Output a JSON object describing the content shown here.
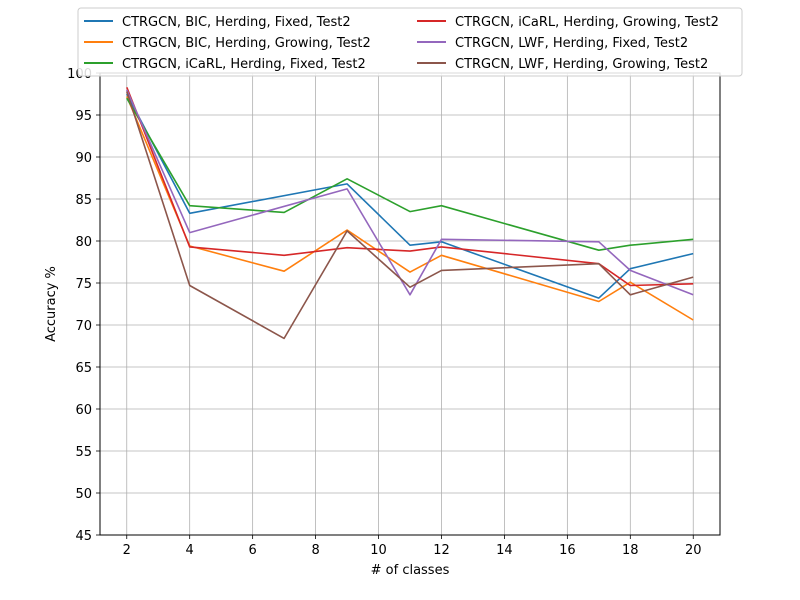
{
  "chart_data": {
    "type": "line",
    "title": "",
    "xlabel": "# of classes",
    "ylabel": "Accuracy %",
    "xlim": [
      1.15,
      20.85
    ],
    "ylim": [
      45,
      100
    ],
    "xticks": [
      2,
      4,
      6,
      8,
      10,
      12,
      14,
      16,
      18,
      20
    ],
    "yticks": [
      45,
      50,
      55,
      60,
      65,
      70,
      75,
      80,
      85,
      90,
      95,
      100
    ],
    "grid": true,
    "legend": {
      "placement": "top",
      "columns": 2
    },
    "series": [
      {
        "name": "CTRGCN, BIC, Herding, Fixed, Test2",
        "color": "#1f77b4",
        "x": [
          2,
          4,
          9,
          11,
          12,
          17,
          18,
          20
        ],
        "y": [
          97.5,
          83.3,
          86.8,
          79.5,
          79.9,
          73.2,
          76.7,
          78.5
        ]
      },
      {
        "name": "CTRGCN, BIC, Herding, Growing, Test2",
        "color": "#ff7f0e",
        "x": [
          2,
          4,
          7,
          9,
          11,
          12,
          17,
          18,
          20
        ],
        "y": [
          97.2,
          79.4,
          76.4,
          81.3,
          76.3,
          78.3,
          72.8,
          75.1,
          70.6
        ]
      },
      {
        "name": "CTRGCN, iCaRL, Herding, Fixed, Test2",
        "color": "#2ca02c",
        "x": [
          2,
          4,
          7,
          9,
          11,
          12,
          17,
          18,
          20
        ],
        "y": [
          97.0,
          84.2,
          83.4,
          87.4,
          83.5,
          84.2,
          78.9,
          79.5,
          80.2
        ]
      },
      {
        "name": "CTRGCN, iCaRL, Herding, Growing, Test2",
        "color": "#d62728",
        "x": [
          2,
          4,
          7,
          9,
          11,
          12,
          17,
          18,
          20
        ],
        "y": [
          98.3,
          79.3,
          78.3,
          79.2,
          78.8,
          79.3,
          77.3,
          74.7,
          74.9
        ]
      },
      {
        "name": "CTRGCN, LWF, Herding, Fixed, Test2",
        "color": "#9467bd",
        "x": [
          2,
          4,
          9,
          11,
          12,
          17,
          18,
          20
        ],
        "y": [
          98.0,
          81.0,
          86.2,
          73.6,
          80.2,
          79.9,
          76.5,
          73.6
        ]
      },
      {
        "name": "CTRGCN, LWF, Herding, Growing, Test2",
        "color": "#8c564b",
        "x": [
          2,
          4,
          7,
          9,
          11,
          12,
          17,
          18,
          20
        ],
        "y": [
          97.8,
          74.7,
          68.4,
          81.2,
          74.5,
          76.5,
          77.3,
          73.6,
          75.7
        ]
      }
    ]
  }
}
